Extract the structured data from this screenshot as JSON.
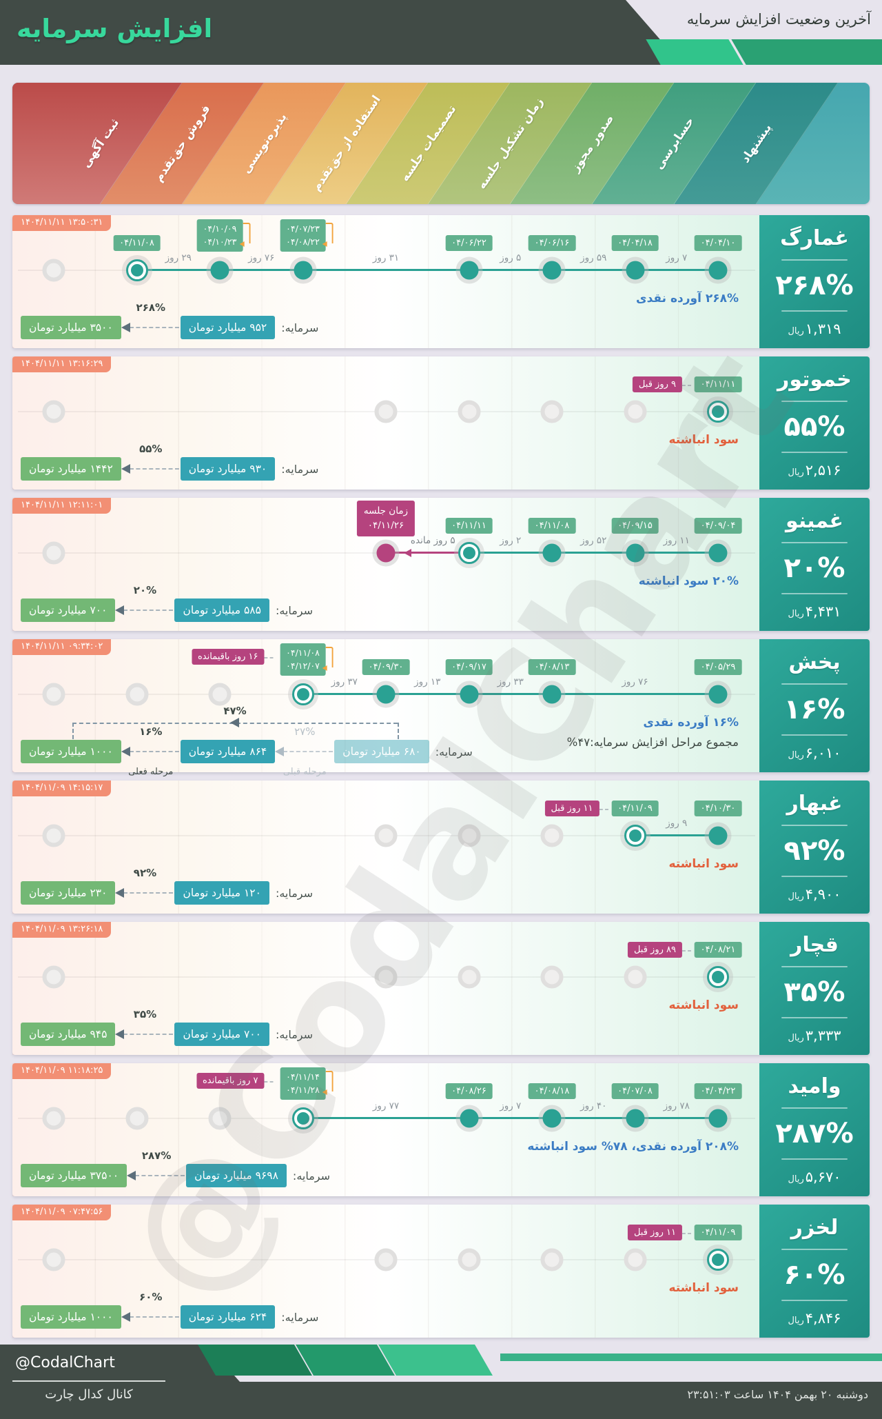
{
  "header": {
    "title": "افزایش سرمایه",
    "subtitle": "آخرین وضعیت افزایش سرمایه"
  },
  "watermark": "@CodalChart",
  "footer": {
    "handle": "@CodalChart",
    "channel": "کانال کدال چارت",
    "datetime": "دوشنبه ۲۰ بهمن ۱۴۰۴ ساعت ۲۳:۵۱:۰۳"
  },
  "theme": {
    "dark": "#414b46",
    "title_green": "#38d89c",
    "page_bg": "#e7e4ed",
    "dot_teal": "#2aa193",
    "magenta": "#b5437e",
    "date_badge_green": "#61b18e",
    "timestamp_salmon": "#f28f74",
    "capital_teal": "#34a3b3",
    "capital_green": "#73b875",
    "note_blue": "#3b7cc4",
    "note_orange": "#e2603c",
    "bracket_orange": "#f2a33c",
    "panel_teal_1": "#2ea99b",
    "panel_teal_2": "#1e8c81",
    "footer_greens": [
      "#1c7f57",
      "#23996b",
      "#3cc18d",
      "#3ab289"
    ],
    "header_greens": [
      "#31c48b",
      "#2aa173"
    ]
  },
  "rial_label": "ریال",
  "chart_data": {
    "type": "timeline",
    "title": "آخرین وضعیت افزایش سرمایه",
    "stages": [
      {
        "label": "ثبت آگهی",
        "c1": "#bb4b49",
        "c2": "#d07a77"
      },
      {
        "label": "فروش حق‌تقدم",
        "c1": "#d96e4c",
        "c2": "#e28e69"
      },
      {
        "label": "پذیره‌نویسی",
        "c1": "#e9975b",
        "c2": "#f0b175"
      },
      {
        "label": "استفاده از حق‌تقدم",
        "c1": "#e2b45c",
        "c2": "#edcd85"
      },
      {
        "label": "تصمیمات جلسه",
        "c1": "#bdbd58",
        "c2": "#cdca75"
      },
      {
        "label": "زمان تشکیل جلسه",
        "c1": "#9db75f",
        "c2": "#b1c57e"
      },
      {
        "label": "صدور مجوز",
        "c1": "#70af67",
        "c2": "#8ebe84"
      },
      {
        "label": "حسابرسی",
        "c1": "#409f7f",
        "c2": "#61b093"
      },
      {
        "label": "پیشنهاد",
        "c1": "#2c8b89",
        "c2": "#449b96"
      }
    ],
    "companies": [
      {
        "name": "غمارگ",
        "percent": "۲۶۸%",
        "price": "۱,۳۱۹",
        "last_update": "۱۴۰۴/۱۱/۱۱ ۱۳:۵۰:۳۱",
        "note": "۲۶۸% آورده نقدی",
        "note_style": "blue",
        "line": [
          1,
          8
        ],
        "dots": [
          {
            "col": 8,
            "stage": "پیشنهاد",
            "type": "done",
            "date": "۰۴/۰۴/۱۰"
          },
          {
            "col": 7,
            "stage": "حسابرسی",
            "type": "done",
            "date": "۰۴/۰۴/۱۸"
          },
          {
            "col": 6,
            "stage": "صدور مجوز",
            "type": "done",
            "date": "۰۴/۰۶/۱۶"
          },
          {
            "col": 5,
            "stage": "زمان تشکیل جلسه",
            "type": "done",
            "date": "۰۴/۰۶/۲۲"
          },
          {
            "col": 3,
            "stage": "استفاده از حق‌تقدم",
            "type": "done",
            "dates": [
              "۰۴/۰۷/۲۳",
              "۰۴/۰۸/۲۲"
            ]
          },
          {
            "col": 2,
            "stage": "پذیره‌نویسی",
            "type": "done",
            "dates": [
              "۰۴/۱۰/۰۹",
              "۰۴/۱۰/۲۳"
            ]
          },
          {
            "col": 1,
            "stage": "فروش حق‌تقدم",
            "type": "current",
            "date": "۰۴/۱۱/۰۸"
          },
          {
            "col": 0,
            "stage": "ثبت آگهی",
            "type": "pending"
          }
        ],
        "gaps": [
          {
            "a": 7,
            "b": 8,
            "label": "۷ روز"
          },
          {
            "a": 6,
            "b": 7,
            "label": "۵۹ روز"
          },
          {
            "a": 5,
            "b": 6,
            "label": "۵ روز"
          },
          {
            "a": 3,
            "b": 5,
            "label": "۳۱ روز"
          },
          {
            "a": 2,
            "b": 3,
            "label": "۷۶ روز"
          },
          {
            "a": 1,
            "b": 2,
            "label": "۲۹ روز"
          }
        ],
        "capital": {
          "items": [
            {
              "type": "badge",
              "text": "۳۵۰۰ میلیارد تومان",
              "style": "green"
            },
            {
              "type": "arrow",
              "pct": "۲۶۸%"
            },
            {
              "type": "badge",
              "text": "۹۵۲ میلیارد تومان",
              "style": "teal"
            },
            {
              "type": "label",
              "text": "سرمایه:"
            }
          ]
        }
      },
      {
        "name": "خموتور",
        "percent": "۵۵%",
        "price": "۲,۵۱۶",
        "last_update": "۱۴۰۴/۱۱/۱۱ ۱۳:۱۶:۲۹",
        "note": "سود انباشته",
        "note_style": "orange",
        "dots": [
          {
            "col": 8,
            "stage": "پیشنهاد",
            "type": "current",
            "date": "۰۴/۱۱/۱۱",
            "flag": "۹ روز قبل"
          },
          {
            "col": 7,
            "stage": "حسابرسی",
            "type": "pending"
          },
          {
            "col": 6,
            "stage": "صدور مجوز",
            "type": "pending"
          },
          {
            "col": 5,
            "stage": "زمان تشکیل جلسه",
            "type": "pending"
          },
          {
            "col": 4,
            "stage": "تصمیمات جلسه",
            "type": "pending"
          },
          {
            "col": 0,
            "stage": "ثبت آگهی",
            "type": "pending"
          }
        ],
        "gaps": [],
        "capital": {
          "items": [
            {
              "type": "badge",
              "text": "۱۴۴۲ میلیارد تومان",
              "style": "green"
            },
            {
              "type": "arrow",
              "pct": "۵۵%"
            },
            {
              "type": "badge",
              "text": "۹۳۰ میلیارد تومان",
              "style": "teal"
            },
            {
              "type": "label",
              "text": "سرمایه:"
            }
          ]
        }
      },
      {
        "name": "غمینو",
        "percent": "۲۰%",
        "price": "۴,۴۳۱",
        "last_update": "۱۴۰۴/۱۱/۱۱ ۱۲:۱۱:۰۱",
        "note": "۲۰% سود انباشته",
        "note_style": "blue",
        "line": [
          5,
          8
        ],
        "mline": {
          "a": 4,
          "b": 5,
          "label": "۵ روز مانده"
        },
        "dots": [
          {
            "col": 8,
            "stage": "پیشنهاد",
            "type": "done",
            "date": "۰۴/۰۹/۰۴"
          },
          {
            "col": 7,
            "stage": "حسابرسی",
            "type": "done",
            "date": "۰۴/۰۹/۱۵"
          },
          {
            "col": 6,
            "stage": "صدور مجوز",
            "type": "done",
            "date": "۰۴/۱۱/۰۸"
          },
          {
            "col": 5,
            "stage": "زمان تشکیل جلسه",
            "type": "current",
            "date": "۰۴/۱۱/۱۱"
          },
          {
            "col": 4,
            "stage": "تصمیمات جلسه",
            "type": "meeting",
            "badge_lines": [
              "زمان جلسه",
              "۰۴/۱۱/۲۶"
            ]
          },
          {
            "col": 0,
            "stage": "ثبت آگهی",
            "type": "pending"
          }
        ],
        "gaps": [
          {
            "a": 7,
            "b": 8,
            "label": "۱۱ روز"
          },
          {
            "a": 6,
            "b": 7,
            "label": "۵۲ روز"
          },
          {
            "a": 5,
            "b": 6,
            "label": "۲ روز"
          }
        ],
        "capital": {
          "items": [
            {
              "type": "badge",
              "text": "۷۰۰ میلیارد تومان",
              "style": "green"
            },
            {
              "type": "arrow",
              "pct": "۲۰%"
            },
            {
              "type": "badge",
              "text": "۵۸۵ میلیارد تومان",
              "style": "teal"
            },
            {
              "type": "label",
              "text": "سرمایه:"
            }
          ]
        }
      },
      {
        "name": "پخش",
        "percent": "۱۶%",
        "price": "۶,۰۱۰",
        "last_update": "۱۴۰۴/۱۱/۱۱ ۰۹:۳۴:۰۲",
        "note": "۱۶% آورده نقدی",
        "note_style": "blue",
        "note2": "مجموع مراحل افزایش سرمایه:۴۷%",
        "line": [
          3,
          8
        ],
        "overall_pct": "۴۷%",
        "dots": [
          {
            "col": 8,
            "stage": "پیشنهاد",
            "type": "done",
            "date": "۰۴/۰۵/۲۹"
          },
          {
            "col": 6,
            "stage": "صدور مجوز",
            "type": "done",
            "date": "۰۴/۰۸/۱۳"
          },
          {
            "col": 5,
            "stage": "زمان تشکیل جلسه",
            "type": "done",
            "date": "۰۴/۰۹/۱۷"
          },
          {
            "col": 4,
            "stage": "تصمیمات جلسه",
            "type": "done",
            "date": "۰۴/۰۹/۳۰"
          },
          {
            "col": 3,
            "stage": "استفاده از حق‌تقدم",
            "type": "current",
            "dates": [
              "۰۴/۱۱/۰۸",
              "۰۴/۱۲/۰۷"
            ],
            "flag": "۱۶ روز باقیمانده"
          },
          {
            "col": 2,
            "stage": "پذیره‌نویسی",
            "type": "pending"
          },
          {
            "col": 1,
            "stage": "فروش حق‌تقدم",
            "type": "pending"
          },
          {
            "col": 0,
            "stage": "ثبت آگهی",
            "type": "pending"
          }
        ],
        "gaps": [
          {
            "a": 6,
            "b": 8,
            "label": "۷۶ روز"
          },
          {
            "a": 5,
            "b": 6,
            "label": "۳۳ روز"
          },
          {
            "a": 4,
            "b": 5,
            "label": "۱۳ روز"
          },
          {
            "a": 3,
            "b": 4,
            "label": "۳۷ روز"
          }
        ],
        "capital": {
          "items": [
            {
              "type": "badge",
              "text": "۱۰۰۰ میلیارد تومان",
              "style": "green"
            },
            {
              "type": "arrow",
              "pct": "۱۶%",
              "sub": "مرحله فعلی"
            },
            {
              "type": "badge",
              "text": "۸۶۴ میلیارد تومان",
              "style": "teal"
            },
            {
              "type": "arrow",
              "pct": "۲۷%",
              "sub": "مرحله قبلی",
              "muted": true
            },
            {
              "type": "badge",
              "text": "۶۸۰ میلیارد تومان",
              "style": "teal-faded"
            },
            {
              "type": "label",
              "text": "سرمایه:"
            }
          ]
        }
      },
      {
        "name": "غبهار",
        "percent": "۹۲%",
        "price": "۴,۹۰۰",
        "last_update": "۱۴۰۴/۱۱/۰۹ ۱۴:۱۵:۱۷",
        "note": "سود انباشته",
        "note_style": "orange",
        "line": [
          7,
          8
        ],
        "dots": [
          {
            "col": 8,
            "stage": "پیشنهاد",
            "type": "done",
            "date": "۰۴/۱۰/۳۰"
          },
          {
            "col": 7,
            "stage": "حسابرسی",
            "type": "current",
            "date": "۰۴/۱۱/۰۹",
            "flag": "۱۱ روز قبل"
          },
          {
            "col": 6,
            "stage": "صدور مجوز",
            "type": "pending"
          },
          {
            "col": 5,
            "stage": "زمان تشکیل جلسه",
            "type": "pending"
          },
          {
            "col": 4,
            "stage": "تصمیمات جلسه",
            "type": "pending"
          },
          {
            "col": 0,
            "stage": "ثبت آگهی",
            "type": "pending"
          }
        ],
        "gaps": [
          {
            "a": 7,
            "b": 8,
            "label": "۹ روز"
          }
        ],
        "capital": {
          "items": [
            {
              "type": "badge",
              "text": "۲۳۰ میلیارد تومان",
              "style": "green"
            },
            {
              "type": "arrow",
              "pct": "۹۲%"
            },
            {
              "type": "badge",
              "text": "۱۲۰ میلیارد تومان",
              "style": "teal"
            },
            {
              "type": "label",
              "text": "سرمایه:"
            }
          ]
        }
      },
      {
        "name": "قچار",
        "percent": "۳۵%",
        "price": "۳,۳۳۳",
        "last_update": "۱۴۰۴/۱۱/۰۹ ۱۳:۲۶:۱۸",
        "note": "سود انباشته",
        "note_style": "orange",
        "dots": [
          {
            "col": 8,
            "stage": "پیشنهاد",
            "type": "current",
            "date": "۰۴/۰۸/۲۱",
            "flag": "۸۹ روز قبل"
          },
          {
            "col": 7,
            "stage": "حسابرسی",
            "type": "pending"
          },
          {
            "col": 6,
            "stage": "صدور مجوز",
            "type": "pending"
          },
          {
            "col": 5,
            "stage": "زمان تشکیل جلسه",
            "type": "pending"
          },
          {
            "col": 4,
            "stage": "تصمیمات جلسه",
            "type": "pending"
          },
          {
            "col": 0,
            "stage": "ثبت آگهی",
            "type": "pending"
          }
        ],
        "gaps": [],
        "capital": {
          "items": [
            {
              "type": "badge",
              "text": "۹۴۵ میلیارد تومان",
              "style": "green"
            },
            {
              "type": "arrow",
              "pct": "۳۵%"
            },
            {
              "type": "badge",
              "text": "۷۰۰ میلیارد تومان",
              "style": "teal"
            },
            {
              "type": "label",
              "text": "سرمایه:"
            }
          ]
        }
      },
      {
        "name": "وامید",
        "percent": "۲۸۷%",
        "price": "۵,۶۷۰",
        "last_update": "۱۴۰۴/۱۱/۰۹ ۱۱:۱۸:۲۵",
        "note": "۲۰۸% آورده نقدی، ۷۸% سود انباشته",
        "note_style": "blue",
        "line": [
          3,
          8
        ],
        "dots": [
          {
            "col": 8,
            "stage": "پیشنهاد",
            "type": "done",
            "date": "۰۴/۰۴/۲۲"
          },
          {
            "col": 7,
            "stage": "حسابرسی",
            "type": "done",
            "date": "۰۴/۰۷/۰۸"
          },
          {
            "col": 6,
            "stage": "صدور مجوز",
            "type": "done",
            "date": "۰۴/۰۸/۱۸"
          },
          {
            "col": 5,
            "stage": "زمان تشکیل جلسه",
            "type": "done",
            "date": "۰۴/۰۸/۲۶"
          },
          {
            "col": 3,
            "stage": "استفاده از حق‌تقدم",
            "type": "current",
            "dates": [
              "۰۴/۱۱/۱۴",
              "۰۴/۱۱/۲۸"
            ],
            "flag": "۷ روز باقیمانده"
          },
          {
            "col": 2,
            "stage": "پذیره‌نویسی",
            "type": "pending"
          },
          {
            "col": 1,
            "stage": "فروش حق‌تقدم",
            "type": "pending"
          },
          {
            "col": 0,
            "stage": "ثبت آگهی",
            "type": "pending"
          }
        ],
        "gaps": [
          {
            "a": 7,
            "b": 8,
            "label": "۷۸ روز"
          },
          {
            "a": 6,
            "b": 7,
            "label": "۴۰ روز"
          },
          {
            "a": 5,
            "b": 6,
            "label": "۷ روز"
          },
          {
            "a": 3,
            "b": 5,
            "label": "۷۷ روز"
          }
        ],
        "capital": {
          "items": [
            {
              "type": "badge",
              "text": "۳۷۵۰۰ میلیارد تومان",
              "style": "green"
            },
            {
              "type": "arrow",
              "pct": "۲۸۷%"
            },
            {
              "type": "badge",
              "text": "۹۶۹۸ میلیارد تومان",
              "style": "teal"
            },
            {
              "type": "label",
              "text": "سرمایه:"
            }
          ]
        }
      },
      {
        "name": "لخزر",
        "percent": "۶۰%",
        "price": "۴,۸۴۶",
        "last_update": "۱۴۰۴/۱۱/۰۹ ۰۷:۴۷:۵۶",
        "note": "سود انباشته",
        "note_style": "orange",
        "dots": [
          {
            "col": 8,
            "stage": "پیشنهاد",
            "type": "current",
            "date": "۰۴/۱۱/۰۹",
            "flag": "۱۱ روز قبل"
          },
          {
            "col": 7,
            "stage": "حسابرسی",
            "type": "pending"
          },
          {
            "col": 6,
            "stage": "صدور مجوز",
            "type": "pending"
          },
          {
            "col": 5,
            "stage": "زمان تشکیل جلسه",
            "type": "pending"
          },
          {
            "col": 4,
            "stage": "تصمیمات جلسه",
            "type": "pending"
          },
          {
            "col": 0,
            "stage": "ثبت آگهی",
            "type": "pending"
          }
        ],
        "gaps": [],
        "capital": {
          "items": [
            {
              "type": "badge",
              "text": "۱۰۰۰ میلیارد تومان",
              "style": "green"
            },
            {
              "type": "arrow",
              "pct": "۶۰%"
            },
            {
              "type": "badge",
              "text": "۶۲۴ میلیارد تومان",
              "style": "teal"
            },
            {
              "type": "label",
              "text": "سرمایه:"
            }
          ]
        }
      }
    ]
  }
}
